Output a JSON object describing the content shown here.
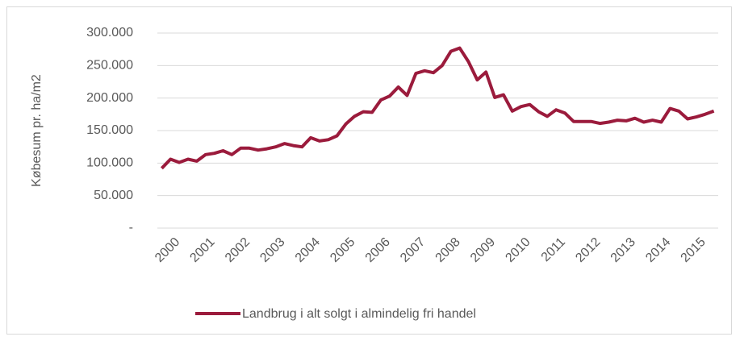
{
  "chart_data": {
    "type": "line",
    "y_label": "Købesum pr. ha/m2",
    "categories": [
      "2000",
      null,
      null,
      null,
      "2001",
      null,
      null,
      null,
      "2002",
      null,
      null,
      null,
      "2003",
      null,
      null,
      null,
      "2004",
      null,
      null,
      null,
      "2005",
      null,
      null,
      null,
      "2006",
      null,
      null,
      null,
      "2007",
      null,
      null,
      null,
      "2008",
      null,
      null,
      null,
      "2009",
      null,
      null,
      null,
      "2010",
      null,
      null,
      null,
      "2011",
      null,
      null,
      null,
      "2012",
      null,
      null,
      null,
      "2013",
      null,
      null,
      null,
      "2014",
      null,
      null,
      null,
      "2015",
      null,
      null,
      null
    ],
    "series": [
      {
        "name": "Landbrug i alt solgt i almindelig fri handel",
        "color": "#9b1b3c",
        "values": [
          92000,
          106000,
          101000,
          106000,
          103000,
          113000,
          115000,
          119000,
          113000,
          123000,
          123000,
          120000,
          122000,
          125000,
          130000,
          127000,
          125000,
          139000,
          134000,
          136000,
          142000,
          160000,
          172000,
          179000,
          178000,
          197000,
          203000,
          217000,
          204000,
          238000,
          242000,
          239000,
          250000,
          272000,
          277000,
          256000,
          228000,
          240000,
          201000,
          205000,
          180000,
          187000,
          190000,
          179000,
          172000,
          182000,
          177000,
          164000,
          164000,
          164000,
          161000,
          163000,
          166000,
          165000,
          169000,
          163000,
          166000,
          163000,
          184000,
          180000,
          168000,
          171000,
          175000,
          180000
        ]
      }
    ],
    "ylim": [
      0,
      300000
    ],
    "yticks": [
      {
        "value": 0,
        "label": "-"
      },
      {
        "value": 50000,
        "label": "50.000"
      },
      {
        "value": 100000,
        "label": "100.000"
      },
      {
        "value": 150000,
        "label": "150.000"
      },
      {
        "value": 200000,
        "label": "200.000"
      },
      {
        "value": 250000,
        "label": "250.000"
      },
      {
        "value": 300000,
        "label": "300.000"
      }
    ],
    "grid": true
  }
}
